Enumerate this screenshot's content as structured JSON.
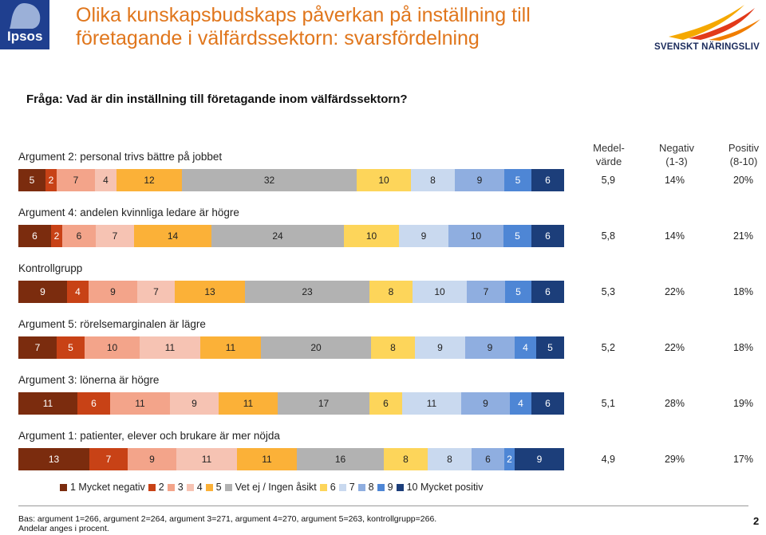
{
  "header": {
    "title": "Olika kunskapsbudskaps påverkan på inställning till företagande i välfärdssektorn: svarsfördelning",
    "logo_left": "Ipsos",
    "logo_right": "SVENSKT NÄRINGSLIV"
  },
  "question": "Fråga: Vad är din inställning till företagande inom välfärdssektorn?",
  "columns": {
    "mean": "Medel-värde",
    "mean_line1": "Medel-",
    "mean_line2": "värde",
    "neg_line1": "Negativ",
    "neg_line2": "(1-3)",
    "pos_line1": "Positiv",
    "pos_line2": "(8-10)"
  },
  "colors": {
    "1": "#7b2c0e",
    "2": "#c84216",
    "3": "#f3a48a",
    "4": "#f6c3b3",
    "5": "#fbb138",
    "ns": "#b2b2b2",
    "6": "#fdd55a",
    "7": "#c9d9ef",
    "8": "#8faee0",
    "9": "#4e86d5",
    "10": "#1c3e7a"
  },
  "chart_data": {
    "type": "bar",
    "orientation": "horizontal-stacked-100",
    "title": "Olika kunskapsbudskaps påverkan på inställning till företagande i välfärdssektorn: svarsfördelning",
    "categories_scale": [
      "1 Mycket negativ",
      "2",
      "3",
      "4",
      "5",
      "Vet ej / Ingen åsikt",
      "6",
      "7",
      "8",
      "9",
      "10 Mycket positiv"
    ],
    "rows": [
      {
        "label": "Argument 2: personal trivs bättre på jobbet",
        "values": [
          5,
          2,
          7,
          4,
          12,
          32,
          10,
          8,
          9,
          5,
          6
        ],
        "mean": "5,9",
        "neg": "14%",
        "pos": "20%"
      },
      {
        "label": "Argument 4: andelen kvinnliga ledare är högre",
        "values": [
          6,
          2,
          6,
          7,
          14,
          24,
          10,
          9,
          10,
          5,
          6
        ],
        "mean": "5,8",
        "neg": "14%",
        "pos": "21%"
      },
      {
        "label": "Kontrollgrupp",
        "values": [
          9,
          4,
          9,
          7,
          13,
          23,
          8,
          10,
          7,
          5,
          6
        ],
        "mean": "5,3",
        "neg": "22%",
        "pos": "18%"
      },
      {
        "label": "Argument 5: rörelsemarginalen är lägre",
        "values": [
          7,
          5,
          10,
          11,
          11,
          20,
          8,
          9,
          9,
          4,
          5
        ],
        "mean": "5,2",
        "neg": "22%",
        "pos": "18%"
      },
      {
        "label": "Argument 3: lönerna är högre",
        "values": [
          11,
          6,
          11,
          9,
          11,
          17,
          6,
          11,
          9,
          4,
          6
        ],
        "mean": "5,1",
        "neg": "28%",
        "pos": "19%"
      },
      {
        "label": "Argument 1: patienter, elever och brukare är mer nöjda",
        "values": [
          13,
          7,
          9,
          11,
          11,
          16,
          8,
          8,
          6,
          2,
          9
        ],
        "mean": "4,9",
        "neg": "29%",
        "pos": "17%"
      }
    ],
    "legend_position": "bottom"
  },
  "footnote": {
    "line1": "Bas: argument 1=266, argument 2=264, argument 3=271, argument 4=270, argument 5=263, kontrollgrupp=266.",
    "line2": "Andelar anges i procent."
  },
  "page_number": "2"
}
